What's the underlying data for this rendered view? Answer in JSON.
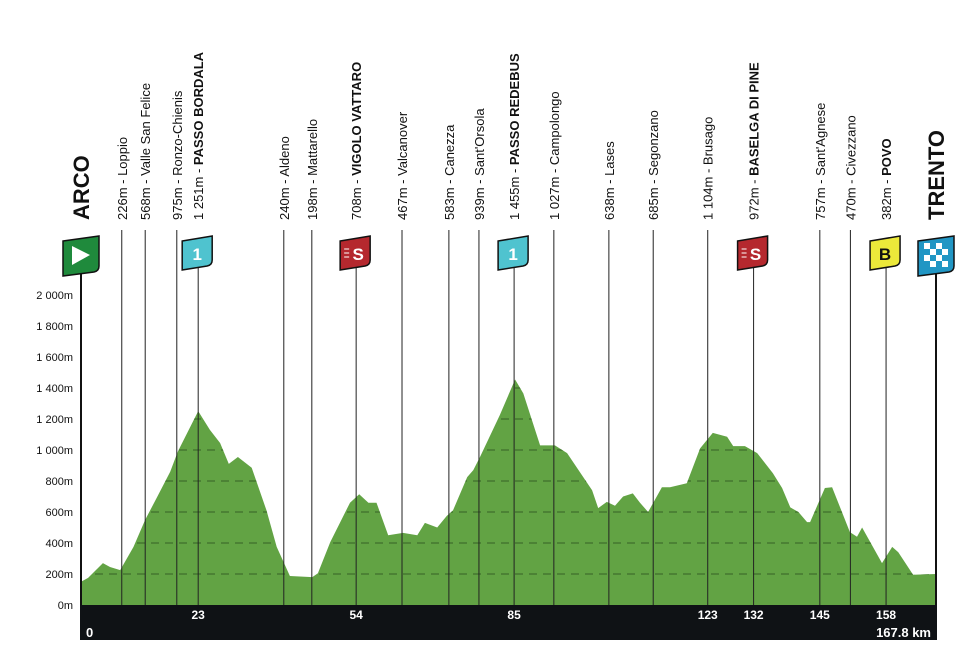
{
  "chart_data": {
    "type": "area",
    "xlabel": "",
    "ylabel": "",
    "xlim": [
      0,
      167.8
    ],
    "ylim": [
      0,
      2000
    ],
    "grid": "dashed horizontal lines inside profile",
    "colors": {
      "profile": "#62a344",
      "grid": "#3f6f2c",
      "axis_bar": "#0f1215",
      "kom": "#4fc3cf",
      "sprint": "#b5282e",
      "bonus": "#ece93a",
      "finish": "#2196c4",
      "start": "#1f8a3c"
    },
    "y_ticks": [
      {
        "value": 0,
        "label": "0m"
      },
      {
        "value": 200,
        "label": "200m"
      },
      {
        "value": 400,
        "label": "400m"
      },
      {
        "value": 600,
        "label": "600m"
      },
      {
        "value": 800,
        "label": "800m"
      },
      {
        "value": 1000,
        "label": "1 000m"
      },
      {
        "value": 1200,
        "label": "1 200m"
      },
      {
        "value": 1400,
        "label": "1 400m"
      },
      {
        "value": 1600,
        "label": "1 600m"
      },
      {
        "value": 1800,
        "label": "1 800m"
      },
      {
        "value": 2000,
        "label": "2 000m"
      }
    ],
    "x_ticks": [
      {
        "value": 23,
        "label": "23"
      },
      {
        "value": 54,
        "label": "54"
      },
      {
        "value": 85,
        "label": "85"
      },
      {
        "value": 123,
        "label": "123"
      },
      {
        "value": 132,
        "label": "132"
      },
      {
        "value": 145,
        "label": "145"
      },
      {
        "value": 158,
        "label": "158"
      }
    ],
    "start_label": "0",
    "end_label": "167.8 km",
    "profile": [
      [
        0,
        150
      ],
      [
        1.4,
        175
      ],
      [
        4.3,
        270
      ],
      [
        5.7,
        245
      ],
      [
        7.7,
        225
      ],
      [
        10.3,
        375
      ],
      [
        12.6,
        550
      ],
      [
        15,
        700
      ],
      [
        17.5,
        860
      ],
      [
        19,
        990
      ],
      [
        23,
        1251
      ],
      [
        25.3,
        1130
      ],
      [
        27.3,
        1045
      ],
      [
        29,
        910
      ],
      [
        30.8,
        955
      ],
      [
        33.5,
        885
      ],
      [
        36.4,
        610
      ],
      [
        38.4,
        375
      ],
      [
        41,
        187
      ],
      [
        45.4,
        180
      ],
      [
        46.5,
        205
      ],
      [
        48.9,
        405
      ],
      [
        52.8,
        660
      ],
      [
        54.6,
        715
      ],
      [
        56.4,
        660
      ],
      [
        58,
        660
      ],
      [
        60.3,
        450
      ],
      [
        63.2,
        465
      ],
      [
        66,
        450
      ],
      [
        67.5,
        530
      ],
      [
        69.9,
        500
      ],
      [
        71.8,
        575
      ],
      [
        73,
        610
      ],
      [
        75.8,
        825
      ],
      [
        77,
        870
      ],
      [
        78.3,
        955
      ],
      [
        82.2,
        1225
      ],
      [
        85.2,
        1455
      ],
      [
        86.8,
        1365
      ],
      [
        90.1,
        1030
      ],
      [
        93,
        1030
      ],
      [
        95.4,
        980
      ],
      [
        100.3,
        740
      ],
      [
        101.5,
        625
      ],
      [
        103.2,
        665
      ],
      [
        104.8,
        640
      ],
      [
        106.4,
        700
      ],
      [
        108.3,
        720
      ],
      [
        109.7,
        660
      ],
      [
        111.3,
        600
      ],
      [
        114,
        760
      ],
      [
        115.6,
        760
      ],
      [
        118.9,
        785
      ],
      [
        121.5,
        1010
      ],
      [
        124,
        1110
      ],
      [
        126.8,
        1085
      ],
      [
        128,
        1025
      ],
      [
        130.3,
        1025
      ],
      [
        132.7,
        980
      ],
      [
        135.8,
        850
      ],
      [
        137.6,
        755
      ],
      [
        139.2,
        630
      ],
      [
        140.8,
        600
      ],
      [
        142.5,
        535
      ],
      [
        143.1,
        535
      ],
      [
        146,
        755
      ],
      [
        147.4,
        760
      ],
      [
        150.9,
        470
      ],
      [
        152.3,
        440
      ],
      [
        153.3,
        500
      ],
      [
        157.2,
        270
      ],
      [
        159.2,
        375
      ],
      [
        160.4,
        340
      ],
      [
        163.3,
        195
      ],
      [
        167.8,
        200
      ]
    ],
    "start": {
      "name": "ARCO",
      "km": 0,
      "flag": "start"
    },
    "finish": {
      "name": "TRENTO",
      "km": 167.8,
      "flag": "finish"
    },
    "waypoints": [
      {
        "km": 8,
        "alt": "226m",
        "name": "Loppio",
        "bold": false
      },
      {
        "km": 12.6,
        "alt": "568m",
        "name": "Valle San Felice",
        "bold": false
      },
      {
        "km": 18.8,
        "alt": "975m",
        "name": "Ronzo-Chienis",
        "bold": false
      },
      {
        "km": 23,
        "alt": "1 251m",
        "name": "PASSO BORDALA",
        "bold": true,
        "flag": "kom",
        "flag_text": "1"
      },
      {
        "km": 39.8,
        "alt": "240m",
        "name": "Aldeno",
        "bold": false
      },
      {
        "km": 45.3,
        "alt": "198m",
        "name": "Mattarello",
        "bold": false
      },
      {
        "km": 54,
        "alt": "708m",
        "name": "VIGOLO VATTARO",
        "bold": true,
        "flag": "sprint",
        "flag_text": "S"
      },
      {
        "km": 63,
        "alt": "467m",
        "name": "Valcanover",
        "bold": false
      },
      {
        "km": 72.2,
        "alt": "583m",
        "name": "Canezza",
        "bold": false
      },
      {
        "km": 78.1,
        "alt": "939m",
        "name": "Sant'Orsola",
        "bold": false
      },
      {
        "km": 85,
        "alt": "1 455m",
        "name": "PASSO REDEBUS",
        "bold": true,
        "flag": "kom",
        "flag_text": "1"
      },
      {
        "km": 92.8,
        "alt": "1 027m",
        "name": "Campolongo",
        "bold": false
      },
      {
        "km": 103.6,
        "alt": "638m",
        "name": "Lases",
        "bold": false
      },
      {
        "km": 112.3,
        "alt": "685m",
        "name": "Segonzano",
        "bold": false
      },
      {
        "km": 123,
        "alt": "1 104m",
        "name": "Brusago",
        "bold": false
      },
      {
        "km": 132,
        "alt": "972m",
        "name": "BASELGA DI PINE",
        "bold": true,
        "flag": "sprint",
        "flag_text": "S"
      },
      {
        "km": 145,
        "alt": "757m",
        "name": "Sant'Agnese",
        "bold": false
      },
      {
        "km": 151,
        "alt": "470m",
        "name": "Civezzano",
        "bold": false
      },
      {
        "km": 158,
        "alt": "382m",
        "name": "POVO",
        "bold": true,
        "flag": "bonus",
        "flag_text": "B"
      }
    ]
  }
}
